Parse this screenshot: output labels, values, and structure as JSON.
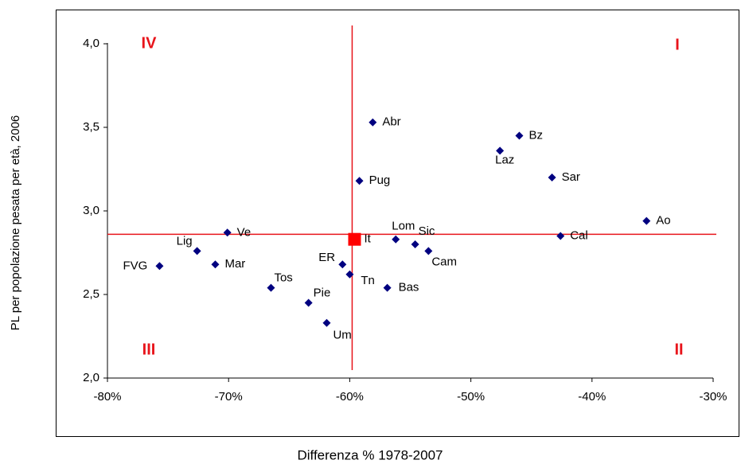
{
  "chart_data": {
    "type": "scatter",
    "xlabel": "Differenza % 1978-2007",
    "ylabel": "PL per popolazione pesata per età, 2006",
    "annotations": [
      "IV",
      "I",
      "III",
      "II"
    ],
    "labels": [
      "Abr",
      "Bz",
      "Laz",
      "Sar",
      "Pug",
      "Ao",
      "Ve",
      "Cal",
      "It",
      "Lom",
      "Sic",
      "Lig",
      "Cam",
      "Mar",
      "ER",
      "FVG",
      "Tn",
      "Tos",
      "Bas",
      "Pie",
      "Um"
    ],
    "x": [
      -58.1,
      -46.0,
      -47.6,
      -43.3,
      -59.2,
      -35.5,
      -70.1,
      -42.6,
      -59.6,
      -56.2,
      -54.6,
      -72.6,
      -53.5,
      -71.1,
      -60.6,
      -75.7,
      -60.0,
      -66.5,
      -56.9,
      -63.4,
      -61.9
    ],
    "values": [
      3.53,
      3.45,
      3.36,
      3.2,
      3.18,
      2.94,
      2.87,
      2.85,
      2.83,
      2.83,
      2.8,
      2.76,
      2.76,
      2.68,
      2.68,
      2.67,
      2.62,
      2.54,
      2.54,
      2.45,
      2.33
    ],
    "markers": [
      "diamond",
      "diamond",
      "diamond",
      "diamond",
      "diamond",
      "diamond",
      "diamond",
      "diamond",
      "square",
      "diamond",
      "diamond",
      "diamond",
      "diamond",
      "diamond",
      "diamond",
      "diamond",
      "diamond",
      "diamond",
      "diamond",
      "diamond",
      "diamond"
    ],
    "colors": [
      "#000080",
      "#000080",
      "#000080",
      "#000080",
      "#000080",
      "#000080",
      "#000080",
      "#000080",
      "#ff0000",
      "#000080",
      "#000080",
      "#000080",
      "#000080",
      "#000080",
      "#000080",
      "#000080",
      "#000080",
      "#000080",
      "#000080",
      "#000080",
      "#000080"
    ],
    "reference_lines": {
      "x": -59.8,
      "y": 2.86,
      "color": "#e8141b"
    },
    "xlim": [
      -80,
      -30
    ],
    "xticks": [
      {
        "value": -80,
        "label": "-80%"
      },
      {
        "value": -70,
        "label": "-70%"
      },
      {
        "value": -60,
        "label": "-60%"
      },
      {
        "value": -50,
        "label": "-50%"
      },
      {
        "value": -40,
        "label": "-40%"
      },
      {
        "value": -30,
        "label": "-30%"
      }
    ],
    "ylim": [
      2,
      4
    ],
    "yticks": [
      {
        "value": 2,
        "label": "2,0"
      },
      {
        "value": 2.5,
        "label": "2,5"
      },
      {
        "value": 3,
        "label": "3,0"
      },
      {
        "value": 3.5,
        "label": "3,5"
      },
      {
        "value": 4,
        "label": "4,0"
      }
    ]
  }
}
